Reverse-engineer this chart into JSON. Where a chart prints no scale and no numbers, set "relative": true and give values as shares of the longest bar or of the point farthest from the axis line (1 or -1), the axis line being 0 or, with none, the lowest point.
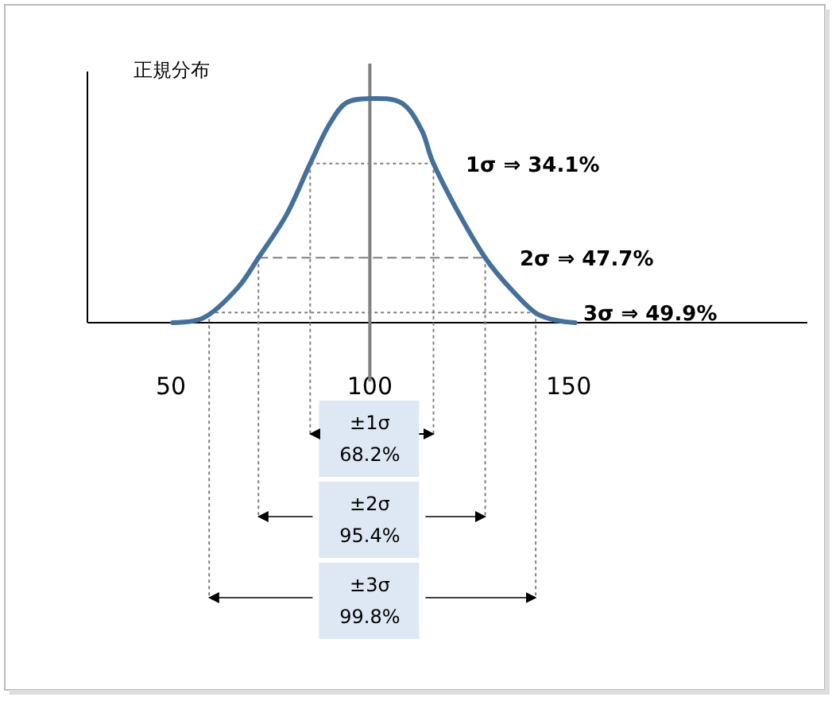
{
  "chart_data": {
    "type": "line",
    "title": "正規分布",
    "relative": true,
    "x": [
      50.4,
      58,
      67,
      72,
      79,
      85,
      90,
      94,
      100,
      108,
      113,
      116,
      129,
      136,
      142,
      147,
      151.6
    ],
    "series": [
      {
        "color": "#44709a",
        "values": [
          0,
          0.02,
          0.16,
          0.29,
          0.48,
          0.71,
          0.89,
          0.98,
          1,
          0.98,
          0.86,
          0.71,
          0.29,
          0.14,
          0.04,
          0.01,
          0
        ]
      }
    ],
    "xlim": [
      29,
      210
    ],
    "xticks": [
      50,
      100,
      150
    ],
    "ref_lines": [
      {
        "axis": "x",
        "value": 100,
        "color": "#808080",
        "line_style": "solid"
      },
      {
        "axis": "y",
        "value": 0.71,
        "line_style": "dotted"
      },
      {
        "axis": "y",
        "value": 0.29,
        "line_style": "dashed"
      },
      {
        "axis": "y",
        "value": 0.045,
        "line_style": "dotted"
      }
    ],
    "annotations": [
      "1σ ⇒ 34.1%",
      "2σ ⇒ 47.7%",
      "3σ ⇒ 49.9%",
      "±1σ\n68.2%",
      "±2σ\n95.4%",
      "±3σ\n99.8%"
    ]
  }
}
